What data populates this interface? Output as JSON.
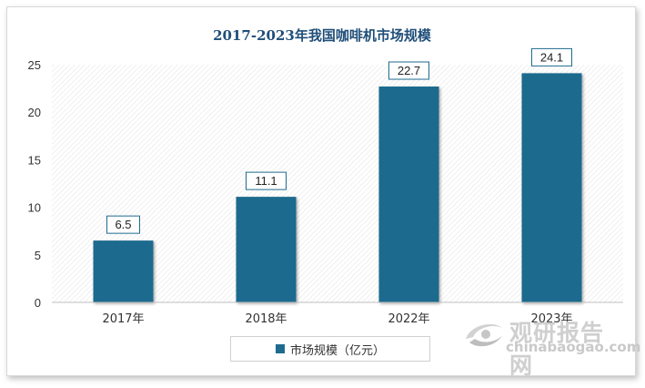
{
  "chart_data": {
    "type": "bar",
    "title": "2017-2023年我国咖啡机市场规模",
    "categories": [
      "2017年",
      "2018年",
      "2022年",
      "2023年"
    ],
    "series": [
      {
        "name": "市场规模（亿元）",
        "values": [
          6.5,
          11.1,
          22.7,
          24.1
        ],
        "color": "#1f6b8e"
      }
    ],
    "xlabel": "",
    "ylabel": "",
    "ylim": [
      0,
      25
    ],
    "yticks": [
      0,
      5,
      10,
      15,
      20,
      25
    ],
    "data_labels": [
      "6.5",
      "11.1",
      "22.7",
      "24.1"
    ],
    "grid": false,
    "legend": "bottom"
  },
  "watermark": {
    "name_cn": "观研报告网",
    "url": "chinabaogao.com",
    "icon": "swirl-logo-icon"
  },
  "colors": {
    "bar": "#1f6b8e",
    "title": "#1f4e79",
    "axis_text": "#333333"
  }
}
